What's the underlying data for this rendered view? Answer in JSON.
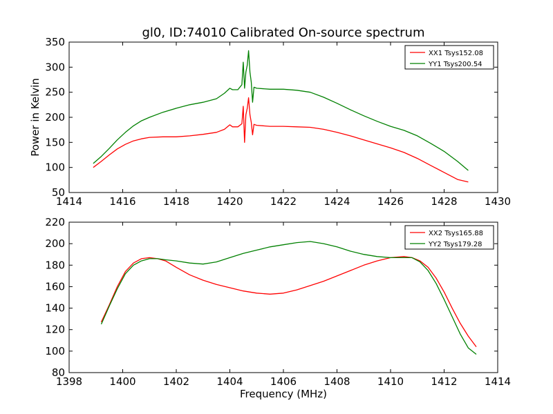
{
  "figure_title": "gl0, ID:74010 Calibrated On-source spectrum",
  "chart_data": [
    {
      "type": "line",
      "title": "gl0, ID:74010 Calibrated On-source spectrum",
      "xlabel": "",
      "ylabel": "Power in Kelvin",
      "xlim": [
        1414,
        1430
      ],
      "ylim": [
        50,
        350
      ],
      "xticks": [
        1414,
        1416,
        1418,
        1420,
        1422,
        1424,
        1426,
        1428,
        1430
      ],
      "yticks": [
        50,
        100,
        150,
        200,
        250,
        300,
        350
      ],
      "grid": false,
      "legend_position": "top-right",
      "series": [
        {
          "name": "XX1 Tsys152.08",
          "color": "#ff0000",
          "x": [
            1414.9,
            1415.2,
            1415.5,
            1415.8,
            1416.1,
            1416.4,
            1416.7,
            1417.0,
            1417.5,
            1418.0,
            1418.5,
            1419.0,
            1419.5,
            1419.8,
            1420.0,
            1420.1,
            1420.3,
            1420.45,
            1420.5,
            1420.55,
            1420.6,
            1420.65,
            1420.7,
            1420.75,
            1420.8,
            1420.85,
            1420.9,
            1421.0,
            1421.5,
            1422.0,
            1422.5,
            1423.0,
            1423.5,
            1424.0,
            1424.5,
            1425.0,
            1425.5,
            1426.0,
            1426.5,
            1427.0,
            1427.5,
            1428.0,
            1428.5,
            1428.9
          ],
          "y": [
            100,
            112,
            125,
            137,
            146,
            153,
            157,
            160,
            161,
            161,
            163,
            166,
            170,
            176,
            185,
            181,
            181,
            187,
            222,
            150,
            205,
            218,
            239,
            205,
            190,
            165,
            186,
            184,
            182,
            182,
            181,
            180,
            176,
            170,
            163,
            155,
            147,
            139,
            130,
            118,
            104,
            90,
            76,
            71
          ]
        },
        {
          "name": "YY1 Tsys200.54",
          "color": "#008000",
          "x": [
            1414.9,
            1415.2,
            1415.5,
            1415.8,
            1416.1,
            1416.4,
            1416.7,
            1417.0,
            1417.5,
            1418.0,
            1418.5,
            1419.0,
            1419.5,
            1419.8,
            1420.0,
            1420.1,
            1420.3,
            1420.45,
            1420.5,
            1420.55,
            1420.6,
            1420.65,
            1420.7,
            1420.75,
            1420.8,
            1420.85,
            1420.9,
            1421.0,
            1421.5,
            1422.0,
            1422.5,
            1423.0,
            1423.5,
            1424.0,
            1424.5,
            1425.0,
            1425.5,
            1426.0,
            1426.5,
            1427.0,
            1427.5,
            1428.0,
            1428.5,
            1428.9
          ],
          "y": [
            108,
            122,
            138,
            155,
            170,
            183,
            193,
            200,
            210,
            218,
            225,
            230,
            237,
            248,
            258,
            255,
            255,
            265,
            310,
            258,
            290,
            304,
            333,
            290,
            270,
            230,
            260,
            258,
            256,
            256,
            254,
            250,
            240,
            228,
            215,
            203,
            192,
            182,
            174,
            163,
            148,
            132,
            112,
            94
          ]
        }
      ]
    },
    {
      "type": "line",
      "title": "",
      "xlabel": "Frequency (MHz)",
      "ylabel": "",
      "xlim": [
        1398,
        1414
      ],
      "ylim": [
        80,
        220
      ],
      "xticks": [
        1398,
        1400,
        1402,
        1404,
        1406,
        1408,
        1410,
        1412,
        1414
      ],
      "yticks": [
        80,
        100,
        120,
        140,
        160,
        180,
        200,
        220
      ],
      "grid": false,
      "legend_position": "top-right",
      "series": [
        {
          "name": "XX2 Tsys165.88",
          "color": "#ff0000",
          "x": [
            1399.2,
            1399.5,
            1399.8,
            1400.1,
            1400.4,
            1400.7,
            1401.0,
            1401.3,
            1401.6,
            1402.0,
            1402.5,
            1403.0,
            1403.5,
            1404.0,
            1404.5,
            1405.0,
            1405.5,
            1406.0,
            1406.5,
            1407.0,
            1407.5,
            1408.0,
            1408.5,
            1409.0,
            1409.5,
            1410.0,
            1410.5,
            1410.8,
            1411.1,
            1411.4,
            1411.7,
            1412.0,
            1412.3,
            1412.6,
            1412.9,
            1413.2
          ],
          "y": [
            127,
            143,
            160,
            174,
            182,
            186,
            187,
            186,
            184,
            178,
            171,
            166,
            162,
            159,
            156,
            154,
            153,
            154,
            157,
            161,
            165,
            170,
            175,
            180,
            184,
            187,
            188,
            187,
            184,
            178,
            168,
            155,
            140,
            126,
            114,
            104
          ]
        },
        {
          "name": "YY2 Tsys179.28",
          "color": "#008000",
          "x": [
            1399.2,
            1399.5,
            1399.8,
            1400.1,
            1400.4,
            1400.7,
            1401.0,
            1401.3,
            1401.6,
            1402.0,
            1402.5,
            1403.0,
            1403.5,
            1404.0,
            1404.5,
            1405.0,
            1405.5,
            1406.0,
            1406.5,
            1407.0,
            1407.5,
            1408.0,
            1408.5,
            1409.0,
            1409.5,
            1410.0,
            1410.5,
            1410.8,
            1411.1,
            1411.4,
            1411.7,
            1412.0,
            1412.3,
            1412.6,
            1412.9,
            1413.2
          ],
          "y": [
            125,
            142,
            158,
            172,
            180,
            184,
            186,
            186,
            185,
            184,
            182,
            181,
            183,
            187,
            191,
            194,
            197,
            199,
            201,
            202,
            200,
            197,
            193,
            190,
            188,
            187,
            187,
            187,
            183,
            175,
            163,
            148,
            132,
            116,
            103,
            97
          ]
        }
      ]
    }
  ]
}
